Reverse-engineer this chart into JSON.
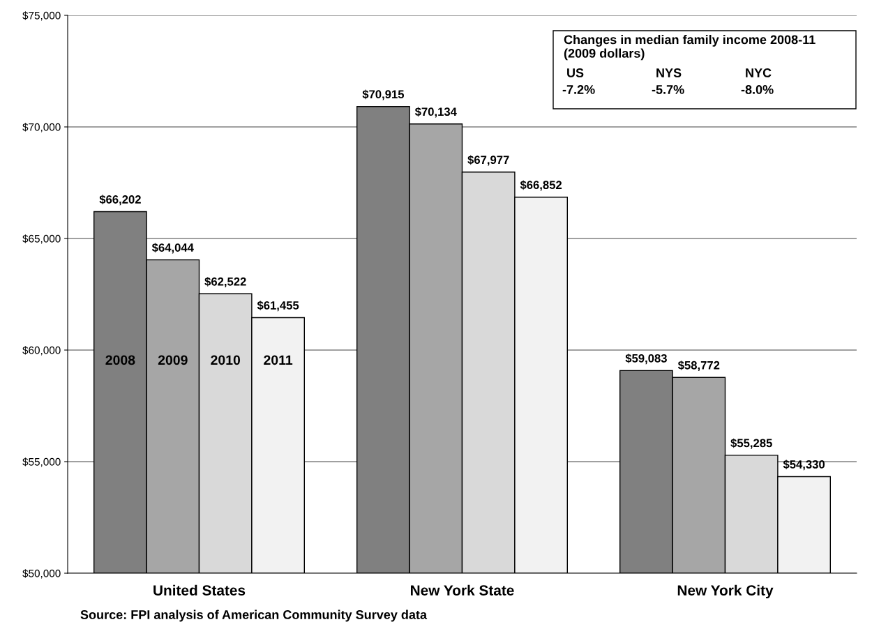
{
  "chart_data": {
    "type": "bar",
    "categories": [
      "United States",
      "New York State",
      "New York City"
    ],
    "series": [
      {
        "name": "2008",
        "color": "#808080",
        "values": [
          66202,
          70915,
          59083
        ],
        "value_labels": [
          "$66,202",
          "$70,915",
          "$59,083"
        ]
      },
      {
        "name": "2009",
        "color": "#a6a6a6",
        "values": [
          64044,
          70134,
          58772
        ],
        "value_labels": [
          "$64,044",
          "$70,134",
          "$58,772"
        ]
      },
      {
        "name": "2010",
        "color": "#d9d9d9",
        "values": [
          62522,
          67977,
          55285
        ],
        "value_labels": [
          "$62,522",
          "$67,977",
          "$55,285"
        ]
      },
      {
        "name": "2011",
        "color": "#f2f2f2",
        "values": [
          61455,
          66852,
          54330
        ],
        "value_labels": [
          "$61,455",
          "$66,852",
          "$54,330"
        ]
      }
    ],
    "ylim": [
      50000,
      75000
    ],
    "yticks": [
      {
        "value": 50000,
        "label": "$50,000"
      },
      {
        "value": 55000,
        "label": "$55,000"
      },
      {
        "value": 60000,
        "label": "$60,000"
      },
      {
        "value": 65000,
        "label": "$65,000"
      },
      {
        "value": 70000,
        "label": "$70,000"
      },
      {
        "value": 75000,
        "label": "$75,000"
      }
    ],
    "grid": "y",
    "legend": false,
    "annotations": [
      "Changes in median family income 2008-11\n(2009 dollars)",
      "US",
      "NYS",
      "NYC",
      "-7.2%",
      "-5.7%",
      "-8.0%",
      "Source: FPI analysis of American Community Survey data"
    ]
  }
}
